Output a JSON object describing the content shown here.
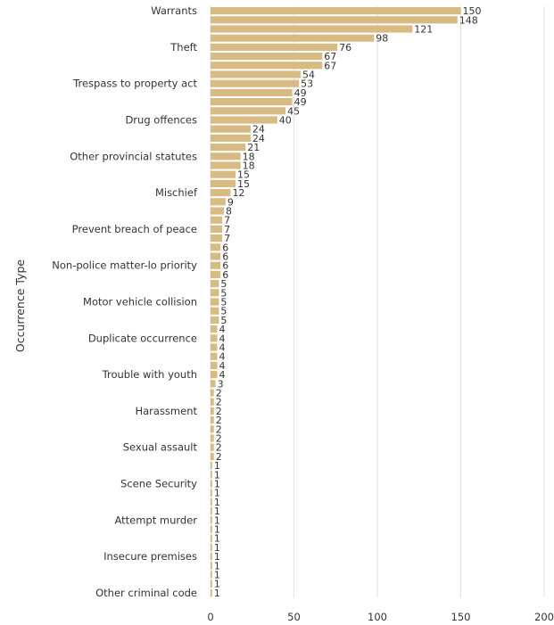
{
  "chart_data": {
    "type": "bar",
    "orientation": "horizontal",
    "ylabel": "Occurrence Type",
    "xlim": [
      0,
      200
    ],
    "xticks": [
      "0",
      "50",
      "100",
      "150",
      "200"
    ],
    "grid": true,
    "bar_color": "#d7bb83",
    "category_labels": [
      {
        "index": 0,
        "label": "Warrants"
      },
      {
        "index": 4,
        "label": "Theft"
      },
      {
        "index": 8,
        "label": "Trespass to property act"
      },
      {
        "index": 12,
        "label": "Drug offences"
      },
      {
        "index": 16,
        "label": "Other provincial statutes"
      },
      {
        "index": 20,
        "label": "Mischief"
      },
      {
        "index": 24,
        "label": "Prevent breach of peace"
      },
      {
        "index": 28,
        "label": "Non-police matter-lo priority"
      },
      {
        "index": 32,
        "label": "Motor vehicle collision"
      },
      {
        "index": 36,
        "label": "Duplicate occurrence"
      },
      {
        "index": 40,
        "label": "Trouble with youth"
      },
      {
        "index": 44,
        "label": "Harassment"
      },
      {
        "index": 48,
        "label": "Sexual assault"
      },
      {
        "index": 52,
        "label": "Scene Security"
      },
      {
        "index": 56,
        "label": "Attempt murder"
      },
      {
        "index": 60,
        "label": "Insecure premises"
      },
      {
        "index": 64,
        "label": "Other criminal code"
      }
    ],
    "values": [
      150,
      148,
      121,
      98,
      76,
      67,
      67,
      54,
      53,
      49,
      49,
      45,
      40,
      24,
      24,
      21,
      18,
      18,
      15,
      15,
      12,
      9,
      8,
      7,
      7,
      7,
      6,
      6,
      6,
      6,
      5,
      5,
      5,
      5,
      5,
      4,
      4,
      4,
      4,
      4,
      4,
      3,
      2,
      2,
      2,
      2,
      2,
      2,
      2,
      2,
      1,
      1,
      1,
      1,
      1,
      1,
      1,
      1,
      1,
      1,
      1,
      1,
      1,
      1,
      1
    ]
  }
}
